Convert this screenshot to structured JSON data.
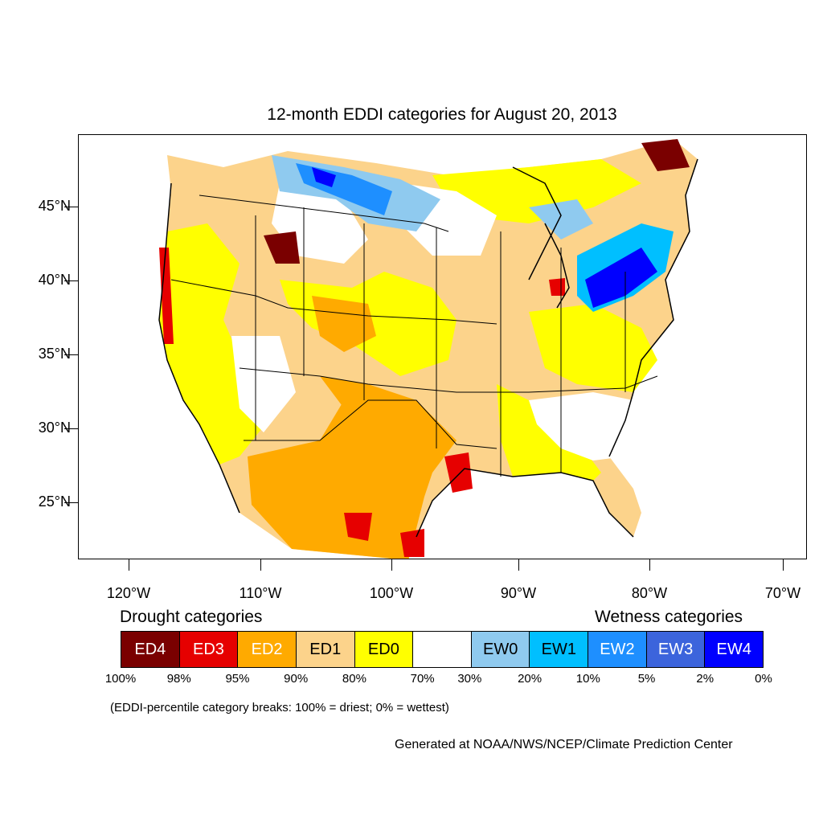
{
  "title": "12-month EDDI categories for August 20, 2013",
  "map": {
    "lat_ticks": [
      "45°N",
      "40°N",
      "35°N",
      "30°N",
      "25°N"
    ],
    "lon_ticks": [
      "120°W",
      "110°W",
      "100°W",
      "90°W",
      "80°W",
      "70°W"
    ]
  },
  "legend": {
    "drought_heading": "Drought categories",
    "wetness_heading": "Wetness categories",
    "categories": [
      {
        "label": "ED4",
        "color": "#7a0000",
        "text_color": "#ffffff"
      },
      {
        "label": "ED3",
        "color": "#e60000",
        "text_color": "#ffffff"
      },
      {
        "label": "ED2",
        "color": "#ffaa00",
        "text_color": "#ffffff"
      },
      {
        "label": "ED1",
        "color": "#fcd38b",
        "text_color": "#000000"
      },
      {
        "label": "ED0",
        "color": "#ffff00",
        "text_color": "#000000"
      },
      {
        "label": "",
        "color": "#ffffff",
        "text_color": "#000000"
      },
      {
        "label": "EW0",
        "color": "#8fcaef",
        "text_color": "#000000"
      },
      {
        "label": "EW1",
        "color": "#00bfff",
        "text_color": "#000000"
      },
      {
        "label": "EW2",
        "color": "#1e8fff",
        "text_color": "#ffffff"
      },
      {
        "label": "EW3",
        "color": "#3c64dc",
        "text_color": "#ffffff"
      },
      {
        "label": "EW4",
        "color": "#0000ff",
        "text_color": "#ffffff"
      }
    ],
    "percentiles": [
      "100%",
      "98%",
      "95%",
      "90%",
      "80%",
      "70%",
      "30%",
      "20%",
      "10%",
      "5%",
      "2%",
      "0%"
    ]
  },
  "note": "(EDDI-percentile category breaks: 100% = driest; 0% = wettest)",
  "credit": "Generated at NOAA/NWS/NCEP/Climate Prediction Center"
}
